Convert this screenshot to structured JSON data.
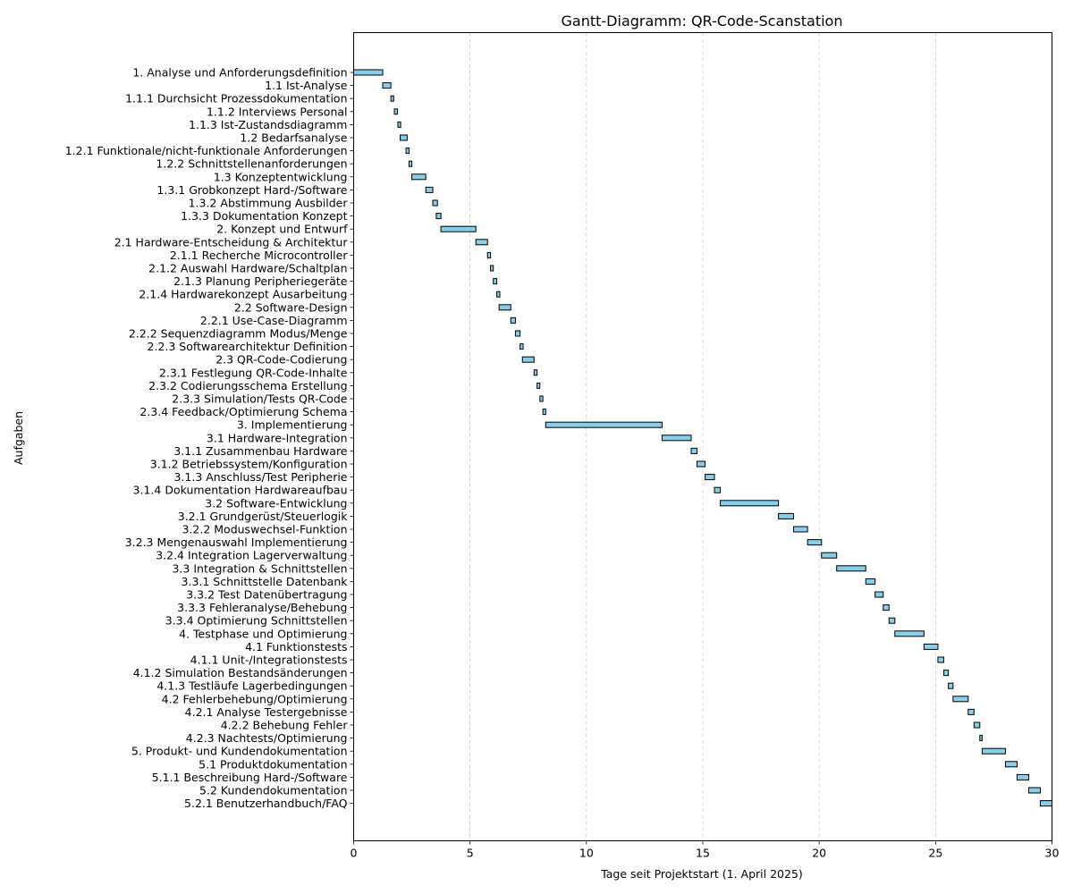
{
  "chart_data": {
    "type": "gantt",
    "title": "Gantt-Diagramm: QR-Code-Scanstation",
    "xlabel": "Tage seit Projektstart (1. April 2025)",
    "ylabel": "Aufgaben",
    "xlim": [
      0,
      30
    ],
    "x_ticks": [
      0,
      5,
      10,
      15,
      20,
      25,
      30
    ],
    "grid": "vertical dashed",
    "bar_color": "#87ceeb",
    "bar_edge_color": "#000000",
    "grid_color": "#c8c8c8",
    "tasks": [
      {
        "label": "1. Analyse und Anforderungsdefinition",
        "start": 0,
        "end": 1.25
      },
      {
        "label": "1.1 Ist-Analyse",
        "start": 1.25,
        "end": 1.6
      },
      {
        "label": "1.1.1 Durchsicht Prozessdokumentation",
        "start": 1.6,
        "end": 1.72
      },
      {
        "label": "1.1.2 Interviews Personal",
        "start": 1.75,
        "end": 1.88
      },
      {
        "label": "1.1.3 Ist-Zustandsdiagramm",
        "start": 1.9,
        "end": 2.02
      },
      {
        "label": "1.2 Bedarfsanalyse",
        "start": 2.0,
        "end": 2.3
      },
      {
        "label": "1.2.1 Funktionale/nicht-funktionale Anforderungen",
        "start": 2.25,
        "end": 2.38
      },
      {
        "label": "1.2.2 Schnittstellenanforderungen",
        "start": 2.38,
        "end": 2.5
      },
      {
        "label": "1.3 Konzeptentwicklung",
        "start": 2.5,
        "end": 3.1
      },
      {
        "label": "1.3.1 Grobkonzept Hard-/Software",
        "start": 3.1,
        "end": 3.4
      },
      {
        "label": "1.3.2 Abstimmung Ausbilder",
        "start": 3.4,
        "end": 3.6
      },
      {
        "label": "1.3.3 Dokumentation Konzept",
        "start": 3.55,
        "end": 3.75
      },
      {
        "label": "2. Konzept und Entwurf",
        "start": 3.75,
        "end": 5.25
      },
      {
        "label": "2.1 Hardware-Entscheidung & Architektur",
        "start": 5.25,
        "end": 5.75
      },
      {
        "label": "2.1.1 Recherche Microcontroller",
        "start": 5.75,
        "end": 5.88
      },
      {
        "label": "2.1.2 Auswahl Hardware/Schaltplan",
        "start": 5.88,
        "end": 6.0
      },
      {
        "label": "2.1.3 Planung Peripheriegeräte",
        "start": 6.0,
        "end": 6.15
      },
      {
        "label": "2.1.4 Hardwarekonzept Ausarbeitung",
        "start": 6.15,
        "end": 6.28
      },
      {
        "label": "2.2 Software-Design",
        "start": 6.25,
        "end": 6.75
      },
      {
        "label": "2.2.1 Use-Case-Diagramm",
        "start": 6.75,
        "end": 6.95
      },
      {
        "label": "2.2.2 Sequenzdiagramm Modus/Menge",
        "start": 6.95,
        "end": 7.15
      },
      {
        "label": "2.2.3 Softwarearchitektur Definition",
        "start": 7.15,
        "end": 7.28
      },
      {
        "label": "2.3 QR-Code-Codierung",
        "start": 7.25,
        "end": 7.75
      },
      {
        "label": "2.3.1 Festlegung QR-Code-Inhalte",
        "start": 7.75,
        "end": 7.88
      },
      {
        "label": "2.3.2 Codierungsschema Erstellung",
        "start": 7.88,
        "end": 8.0
      },
      {
        "label": "2.3.3 Simulation/Tests QR-Code",
        "start": 8.0,
        "end": 8.13
      },
      {
        "label": "2.3.4 Feedback/Optimierung Schema",
        "start": 8.13,
        "end": 8.25
      },
      {
        "label": "3. Implementierung",
        "start": 8.25,
        "end": 13.25
      },
      {
        "label": "3.1 Hardware-Integration",
        "start": 13.25,
        "end": 14.5
      },
      {
        "label": "3.1.1 Zusammenbau Hardware",
        "start": 14.5,
        "end": 14.75
      },
      {
        "label": "3.1.2 Betriebssystem/Konfiguration",
        "start": 14.75,
        "end": 15.1
      },
      {
        "label": "3.1.3 Anschluss/Test Peripherie",
        "start": 15.1,
        "end": 15.5
      },
      {
        "label": "3.1.4 Dokumentation Hardwareaufbau",
        "start": 15.5,
        "end": 15.75
      },
      {
        "label": "3.2 Software-Entwicklung",
        "start": 15.75,
        "end": 18.25
      },
      {
        "label": "3.2.1 Grundgerüst/Steuerlogik",
        "start": 18.25,
        "end": 18.9
      },
      {
        "label": "3.2.2 Moduswechsel-Funktion",
        "start": 18.9,
        "end": 19.5
      },
      {
        "label": "3.2.3 Mengenauswahl Implementierung",
        "start": 19.5,
        "end": 20.1
      },
      {
        "label": "3.2.4 Integration Lagerverwaltung",
        "start": 20.1,
        "end": 20.75
      },
      {
        "label": "3.3 Integration & Schnittstellen",
        "start": 20.75,
        "end": 22.0
      },
      {
        "label": "3.3.1 Schnittstelle Datenbank",
        "start": 22.0,
        "end": 22.4
      },
      {
        "label": "3.3.2 Test Datenübertragung",
        "start": 22.4,
        "end": 22.75
      },
      {
        "label": "3.3.3 Fehleranalyse/Behebung",
        "start": 22.75,
        "end": 23.0
      },
      {
        "label": "3.3.4 Optimierung Schnittstellen",
        "start": 23.0,
        "end": 23.25
      },
      {
        "label": "4. Testphase und Optimierung",
        "start": 23.25,
        "end": 24.5
      },
      {
        "label": "4.1 Funktionstests",
        "start": 24.5,
        "end": 25.1
      },
      {
        "label": "4.1.1 Unit-/Integrationstests",
        "start": 25.1,
        "end": 25.35
      },
      {
        "label": "4.1.2 Simulation Bestandsänderungen",
        "start": 25.35,
        "end": 25.55
      },
      {
        "label": "4.1.3 Testläufe Lagerbedingungen",
        "start": 25.55,
        "end": 25.75
      },
      {
        "label": "4.2 Fehlerbehebung/Optimierung",
        "start": 25.75,
        "end": 26.4
      },
      {
        "label": "4.2.1 Analyse Testergebnisse",
        "start": 26.4,
        "end": 26.65
      },
      {
        "label": "4.2.2 Behebung Fehler",
        "start": 26.65,
        "end": 26.9
      },
      {
        "label": "4.2.3 Nachtests/Optimierung",
        "start": 26.9,
        "end": 27.0
      },
      {
        "label": "5. Produkt- und Kundendokumentation",
        "start": 27.0,
        "end": 28.0
      },
      {
        "label": "5.1 Produktdokumentation",
        "start": 28.0,
        "end": 28.5
      },
      {
        "label": "5.1.1 Beschreibung Hard-/Software",
        "start": 28.5,
        "end": 29.0
      },
      {
        "label": "5.2 Kundendokumentation",
        "start": 29.0,
        "end": 29.5
      },
      {
        "label": "5.2.1 Benutzerhandbuch/FAQ",
        "start": 29.5,
        "end": 30.0
      }
    ]
  }
}
